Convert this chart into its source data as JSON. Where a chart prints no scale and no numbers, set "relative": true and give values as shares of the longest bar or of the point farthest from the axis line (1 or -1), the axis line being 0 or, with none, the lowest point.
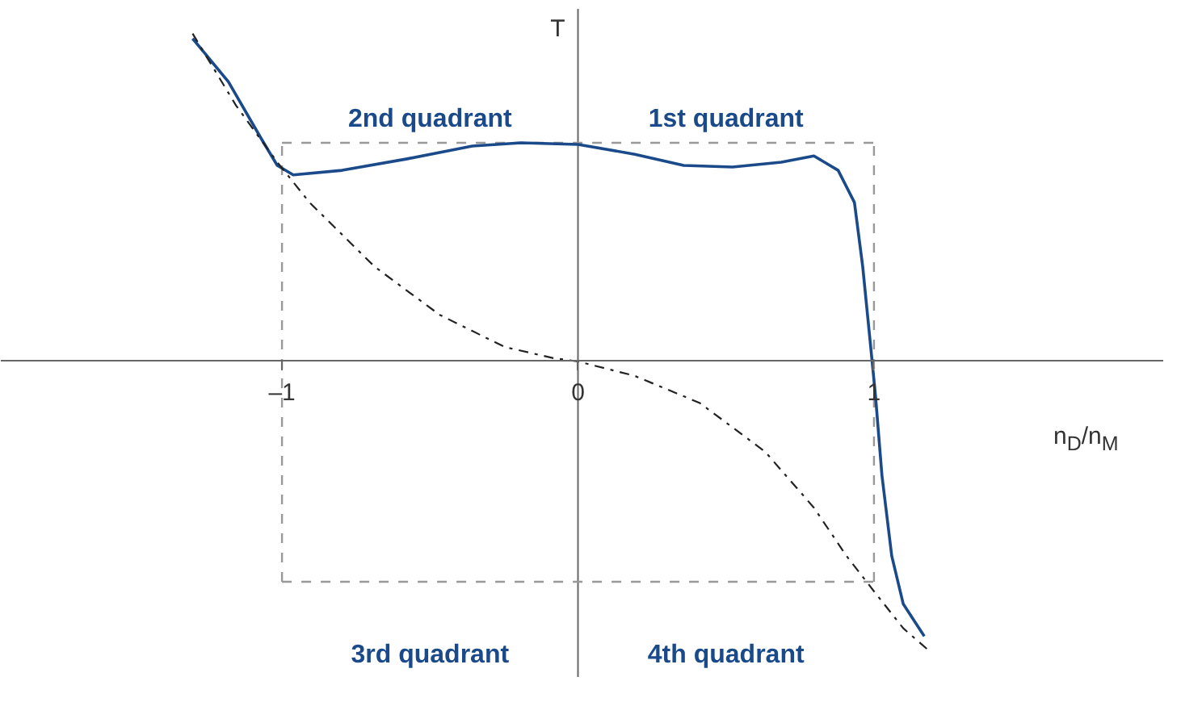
{
  "chart_data": {
    "type": "line",
    "relative": true,
    "ylabel": "T",
    "xlabel": "n$_{D}$/n$_{M}$",
    "xlim": [
      -1.95,
      1.98
    ],
    "xticks": [
      {
        "value": -1,
        "label": "–1"
      },
      0,
      1
    ],
    "grid": false,
    "marker": "none",
    "series": [
      {
        "color": "#1a4a8a",
        "line_style": "solid",
        "x": [
          -1.302,
          -1.181,
          -1.071,
          -1.016,
          -0.962,
          -0.797,
          -0.577,
          -0.357,
          -0.192,
          0,
          0.192,
          0.357,
          0.522,
          0.687,
          0.797,
          0.879,
          0.934,
          0.962,
          0.989,
          1.005,
          1.027,
          1.06,
          1.099,
          1.17
        ],
        "values": [
          0.985,
          0.853,
          0.681,
          0.598,
          0.569,
          0.583,
          0.618,
          0.657,
          0.667,
          0.662,
          0.632,
          0.598,
          0.593,
          0.608,
          0.627,
          0.583,
          0.485,
          0.289,
          0.044,
          -0.103,
          -0.348,
          -0.593,
          -0.74,
          -0.838
        ]
      },
      {
        "color": "#222222",
        "line_style": "dashdot",
        "x": [
          -1.302,
          -1.154,
          -1.016,
          -0.907,
          -0.687,
          -0.467,
          -0.247,
          -0.082,
          0,
          0.192,
          0.412,
          0.632,
          0.797,
          0.907,
          1.0,
          1.099,
          1.192
        ],
        "values": [
          1.0,
          0.779,
          0.608,
          0.485,
          0.289,
          0.142,
          0.044,
          0.01,
          0,
          -0.044,
          -0.127,
          -0.275,
          -0.446,
          -0.593,
          -0.701,
          -0.814,
          -0.887
        ]
      }
    ],
    "ref_lines": [
      {
        "axis": "x",
        "value": -1,
        "color": "#999999",
        "line_style": "dashed"
      },
      {
        "axis": "x",
        "value": 1,
        "color": "#999999",
        "line_style": "dashed"
      },
      {
        "axis": "y",
        "value": 0.667,
        "color": "#999999",
        "line_style": "dashed"
      },
      {
        "axis": "y",
        "value": -0.672,
        "color": "#999999",
        "line_style": "dashed"
      }
    ],
    "annotations": [
      "2nd quadrant",
      "1st quadrant",
      "3rd quadrant",
      "4th quadrant"
    ]
  }
}
